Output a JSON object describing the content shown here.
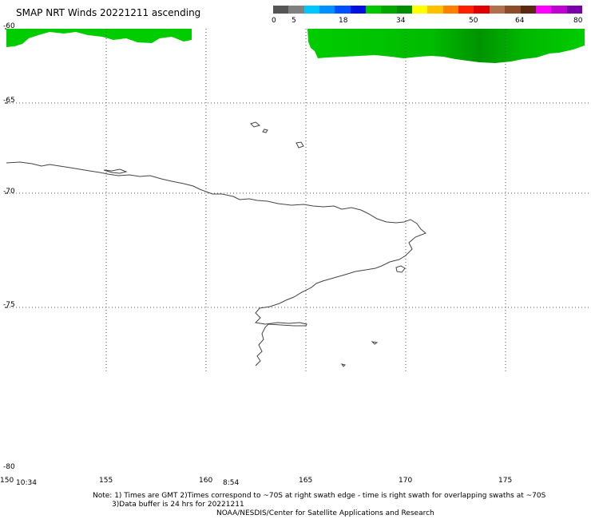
{
  "title": "SMAP NRT Winds 20221211 ascending",
  "colorbar": {
    "labels": [
      "0",
      "5",
      "18",
      "34",
      "50",
      "64",
      "80"
    ],
    "segments": [
      {
        "color": "#555555"
      },
      {
        "color": "#808080"
      },
      {
        "color": "#00c8ff"
      },
      {
        "color": "#0090ff"
      },
      {
        "color": "#0050ff"
      },
      {
        "color": "#0010e0"
      },
      {
        "color": "#00c800"
      },
      {
        "color": "#00a800"
      },
      {
        "color": "#008c00"
      },
      {
        "color": "#ffff00"
      },
      {
        "color": "#ffc000"
      },
      {
        "color": "#ff8000"
      },
      {
        "color": "#ff2000"
      },
      {
        "color": "#e00000"
      },
      {
        "color": "#b07050"
      },
      {
        "color": "#8c4c2c"
      },
      {
        "color": "#5a2a10"
      },
      {
        "color": "#ff00ff"
      },
      {
        "color": "#c000d0"
      },
      {
        "color": "#7800a8"
      }
    ]
  },
  "y_labels": [
    "-60",
    "-65",
    "-70",
    "-75",
    "-80"
  ],
  "x_labels": [
    "150",
    "155",
    "160",
    "165",
    "170",
    "175"
  ],
  "times": [
    "10:34",
    "8:54"
  ],
  "notes": [
    "Note: 1) Times are GMT 2)Times correspond to ~70S at right swath edge - time is right swath for overlapping swaths at ~70S",
    "3)Data buffer is 24 hrs for 20221211",
    "NOAA/NESDIS/Center for Satellite Applications and Research"
  ],
  "colors": {
    "wind_green": "#00cc00",
    "wind_dark": "#009900",
    "coast": "#444444",
    "grid": "#555555"
  }
}
